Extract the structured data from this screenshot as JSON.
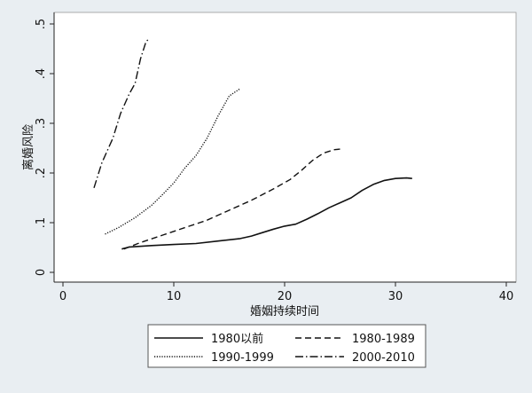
{
  "chart_data": {
    "type": "line",
    "xlabel": "婚姻持续时间",
    "ylabel": "离婚风险",
    "xlim": [
      0,
      40
    ],
    "ylim": [
      0,
      0.5
    ],
    "x_ticks": [
      0,
      10,
      20,
      30,
      40
    ],
    "y_ticks": [
      0,
      0.1,
      0.2,
      0.3,
      0.4,
      0.5
    ],
    "x_tick_labels": [
      "0",
      "10",
      "20",
      "30",
      "40"
    ],
    "y_tick_labels": [
      "0",
      ".1",
      ".2",
      ".3",
      ".4",
      ".5"
    ],
    "grid": false,
    "legend_placement": "bottom",
    "series": [
      {
        "name": "1980以前",
        "dash": "solid",
        "points": [
          [
            5.3,
            0.047
          ],
          [
            6,
            0.051
          ],
          [
            8,
            0.054
          ],
          [
            10,
            0.056
          ],
          [
            12,
            0.058
          ],
          [
            14,
            0.063
          ],
          [
            16,
            0.068
          ],
          [
            17,
            0.073
          ],
          [
            18,
            0.08
          ],
          [
            19,
            0.087
          ],
          [
            20,
            0.093
          ],
          [
            21,
            0.097
          ],
          [
            22,
            0.107
          ],
          [
            23,
            0.118
          ],
          [
            24,
            0.13
          ],
          [
            25,
            0.14
          ],
          [
            26,
            0.15
          ],
          [
            27,
            0.165
          ],
          [
            28,
            0.177
          ],
          [
            29,
            0.185
          ],
          [
            30,
            0.189
          ],
          [
            31,
            0.19
          ],
          [
            31.5,
            0.189
          ]
        ]
      },
      {
        "name": "1980-1989",
        "dash": "dash",
        "points": [
          [
            5.5,
            0.047
          ],
          [
            7,
            0.06
          ],
          [
            9,
            0.075
          ],
          [
            11,
            0.09
          ],
          [
            13,
            0.105
          ],
          [
            15,
            0.125
          ],
          [
            17,
            0.145
          ],
          [
            19,
            0.168
          ],
          [
            20.5,
            0.187
          ],
          [
            21.5,
            0.205
          ],
          [
            22.5,
            0.225
          ],
          [
            23.5,
            0.24
          ],
          [
            24.5,
            0.247
          ],
          [
            25,
            0.248
          ]
        ]
      },
      {
        "name": "1990-1999",
        "dash": "dot",
        "points": [
          [
            3.8,
            0.077
          ],
          [
            5,
            0.09
          ],
          [
            6.5,
            0.11
          ],
          [
            8,
            0.135
          ],
          [
            9,
            0.157
          ],
          [
            10,
            0.18
          ],
          [
            11,
            0.21
          ],
          [
            12,
            0.235
          ],
          [
            13,
            0.27
          ],
          [
            14,
            0.315
          ],
          [
            15,
            0.355
          ],
          [
            16,
            0.37
          ]
        ]
      },
      {
        "name": "2000-2010",
        "dash": "dashdot",
        "points": [
          [
            2.8,
            0.17
          ],
          [
            3.5,
            0.22
          ],
          [
            4.5,
            0.27
          ],
          [
            5.2,
            0.32
          ],
          [
            6,
            0.36
          ],
          [
            6.5,
            0.38
          ],
          [
            7,
            0.43
          ],
          [
            7.5,
            0.465
          ],
          [
            7.8,
            0.47
          ]
        ]
      }
    ]
  }
}
